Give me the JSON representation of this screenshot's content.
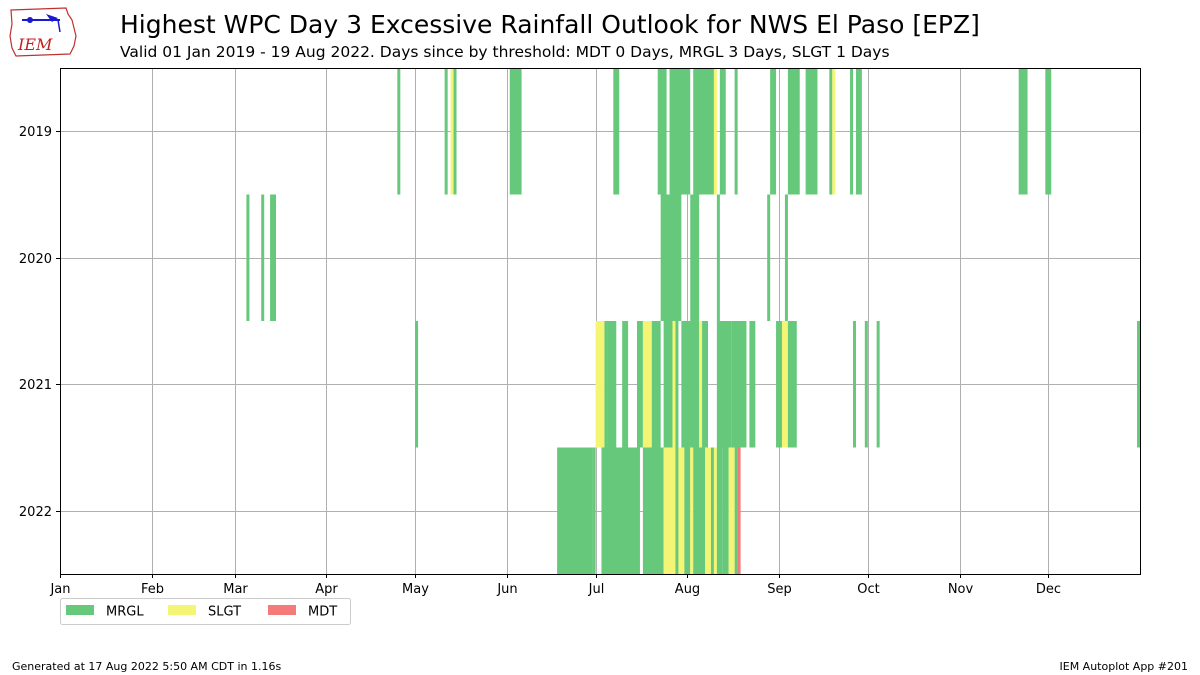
{
  "header": {
    "title": "Highest WPC Day 3 Excessive Rainfall Outlook for NWS El Paso [EPZ]",
    "subtitle": "Valid 01 Jan 2019 - 19 Aug 2022. Days since by threshold: MDT 0 Days, MRGL 3 Days, SLGT 1 Days",
    "logo_text": "IEM"
  },
  "footer": {
    "generated": "Generated at 17 Aug 2022 5:50 AM CDT in 1.16s",
    "app": "IEM Autoplot App #201"
  },
  "colors": {
    "MRGL": "#66c87a",
    "SLGT": "#f5f575",
    "MDT": "#f57a7a",
    "grid": "#b0b0b0"
  },
  "chart_data": {
    "type": "heatmap",
    "title": "Highest WPC Day 3 Excessive Rainfall Outlook for NWS El Paso [EPZ]",
    "x_axis": {
      "label": "",
      "unit": "day of year",
      "range": [
        1,
        366
      ],
      "ticks": [
        {
          "label": "Jan",
          "day": 1
        },
        {
          "label": "Feb",
          "day": 32
        },
        {
          "label": "Mar",
          "day": 60
        },
        {
          "label": "Apr",
          "day": 91
        },
        {
          "label": "May",
          "day": 121
        },
        {
          "label": "Jun",
          "day": 152
        },
        {
          "label": "Jul",
          "day": 182
        },
        {
          "label": "Aug",
          "day": 213
        },
        {
          "label": "Sep",
          "day": 244
        },
        {
          "label": "Oct",
          "day": 274
        },
        {
          "label": "Nov",
          "day": 305
        },
        {
          "label": "Dec",
          "day": 335
        }
      ]
    },
    "y_axis": {
      "label": "",
      "categories": [
        "2019",
        "2020",
        "2021",
        "2022"
      ]
    },
    "grid": true,
    "legend": {
      "placement": "bottom-left",
      "entries": [
        "MRGL",
        "SLGT",
        "MDT"
      ]
    },
    "years": [
      {
        "year": "2019",
        "events": [
          {
            "start": 115,
            "end": 115,
            "level": "MRGL"
          },
          {
            "start": 131,
            "end": 131,
            "level": "MRGL"
          },
          {
            "start": 133,
            "end": 133,
            "level": "SLGT"
          },
          {
            "start": 134,
            "end": 134,
            "level": "MRGL"
          },
          {
            "start": 153,
            "end": 156,
            "level": "MRGL"
          },
          {
            "start": 188,
            "end": 189,
            "level": "MRGL"
          },
          {
            "start": 203,
            "end": 205,
            "level": "MRGL"
          },
          {
            "start": 207,
            "end": 213,
            "level": "MRGL"
          },
          {
            "start": 215,
            "end": 221,
            "level": "MRGL"
          },
          {
            "start": 222,
            "end": 222,
            "level": "SLGT"
          },
          {
            "start": 224,
            "end": 225,
            "level": "MRGL"
          },
          {
            "start": 229,
            "end": 229,
            "level": "MRGL"
          },
          {
            "start": 241,
            "end": 242,
            "level": "MRGL"
          },
          {
            "start": 247,
            "end": 250,
            "level": "MRGL"
          },
          {
            "start": 253,
            "end": 256,
            "level": "MRGL"
          },
          {
            "start": 261,
            "end": 261,
            "level": "MRGL"
          },
          {
            "start": 262,
            "end": 262,
            "level": "SLGT"
          },
          {
            "start": 268,
            "end": 268,
            "level": "MRGL"
          },
          {
            "start": 270,
            "end": 271,
            "level": "MRGL"
          },
          {
            "start": 325,
            "end": 327,
            "level": "MRGL"
          },
          {
            "start": 334,
            "end": 335,
            "level": "MRGL"
          }
        ]
      },
      {
        "year": "2020",
        "events": [
          {
            "start": 64,
            "end": 64,
            "level": "MRGL"
          },
          {
            "start": 69,
            "end": 69,
            "level": "MRGL"
          },
          {
            "start": 72,
            "end": 73,
            "level": "MRGL"
          },
          {
            "start": 204,
            "end": 210,
            "level": "MRGL"
          },
          {
            "start": 214,
            "end": 216,
            "level": "MRGL"
          },
          {
            "start": 223,
            "end": 223,
            "level": "MRGL"
          },
          {
            "start": 240,
            "end": 240,
            "level": "MRGL"
          },
          {
            "start": 246,
            "end": 246,
            "level": "MRGL"
          }
        ]
      },
      {
        "year": "2021",
        "events": [
          {
            "start": 121,
            "end": 121,
            "level": "MRGL"
          },
          {
            "start": 182,
            "end": 184,
            "level": "SLGT"
          },
          {
            "start": 185,
            "end": 185,
            "level": "MRGL"
          },
          {
            "start": 186,
            "end": 188,
            "level": "MRGL"
          },
          {
            "start": 191,
            "end": 192,
            "level": "MRGL"
          },
          {
            "start": 196,
            "end": 197,
            "level": "MRGL"
          },
          {
            "start": 198,
            "end": 200,
            "level": "SLGT"
          },
          {
            "start": 201,
            "end": 203,
            "level": "MRGL"
          },
          {
            "start": 205,
            "end": 207,
            "level": "MRGL"
          },
          {
            "start": 208,
            "end": 208,
            "level": "SLGT"
          },
          {
            "start": 209,
            "end": 209,
            "level": "MRGL"
          },
          {
            "start": 211,
            "end": 216,
            "level": "MRGL"
          },
          {
            "start": 217,
            "end": 217,
            "level": "SLGT"
          },
          {
            "start": 218,
            "end": 219,
            "level": "MRGL"
          },
          {
            "start": 223,
            "end": 227,
            "level": "MRGL"
          },
          {
            "start": 228,
            "end": 232,
            "level": "MRGL"
          },
          {
            "start": 234,
            "end": 235,
            "level": "MRGL"
          },
          {
            "start": 243,
            "end": 244,
            "level": "MRGL"
          },
          {
            "start": 245,
            "end": 246,
            "level": "SLGT"
          },
          {
            "start": 247,
            "end": 249,
            "level": "MRGL"
          },
          {
            "start": 269,
            "end": 269,
            "level": "MRGL"
          },
          {
            "start": 273,
            "end": 273,
            "level": "MRGL"
          },
          {
            "start": 277,
            "end": 277,
            "level": "MRGL"
          },
          {
            "start": 365,
            "end": 365,
            "level": "MRGL"
          }
        ]
      },
      {
        "year": "2022",
        "events": [
          {
            "start": 169,
            "end": 180,
            "level": "MRGL"
          },
          {
            "start": 181,
            "end": 181,
            "level": "MRGL"
          },
          {
            "start": 184,
            "end": 196,
            "level": "MRGL"
          },
          {
            "start": 198,
            "end": 204,
            "level": "MRGL"
          },
          {
            "start": 205,
            "end": 208,
            "level": "SLGT"
          },
          {
            "start": 209,
            "end": 209,
            "level": "MRGL"
          },
          {
            "start": 210,
            "end": 211,
            "level": "SLGT"
          },
          {
            "start": 212,
            "end": 213,
            "level": "MRGL"
          },
          {
            "start": 214,
            "end": 214,
            "level": "SLGT"
          },
          {
            "start": 215,
            "end": 218,
            "level": "MRGL"
          },
          {
            "start": 219,
            "end": 220,
            "level": "SLGT"
          },
          {
            "start": 221,
            "end": 221,
            "level": "MRGL"
          },
          {
            "start": 222,
            "end": 222,
            "level": "SLGT"
          },
          {
            "start": 223,
            "end": 224,
            "level": "MRGL"
          },
          {
            "start": 225,
            "end": 226,
            "level": "MRGL"
          },
          {
            "start": 227,
            "end": 228,
            "level": "SLGT"
          },
          {
            "start": 229,
            "end": 229,
            "level": "MRGL"
          },
          {
            "start": 230,
            "end": 230,
            "level": "MDT"
          }
        ]
      }
    ]
  }
}
